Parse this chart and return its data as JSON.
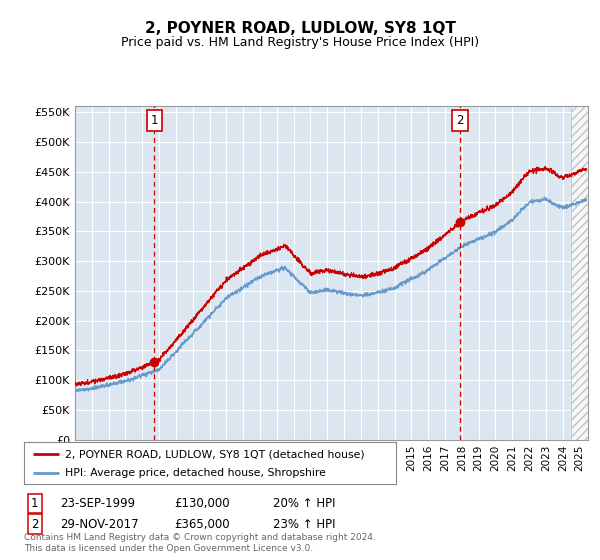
{
  "title": "2, POYNER ROAD, LUDLOW, SY8 1QT",
  "subtitle": "Price paid vs. HM Land Registry's House Price Index (HPI)",
  "ylim": [
    0,
    560000
  ],
  "yticks": [
    0,
    50000,
    100000,
    150000,
    200000,
    250000,
    300000,
    350000,
    400000,
    450000,
    500000,
    550000
  ],
  "ytick_labels": [
    "£0",
    "£50K",
    "£100K",
    "£150K",
    "£200K",
    "£250K",
    "£300K",
    "£350K",
    "£400K",
    "£450K",
    "£500K",
    "£550K"
  ],
  "xlim_start": 1995.0,
  "xlim_end": 2025.5,
  "hatch_start": 2024.5,
  "sale1_year": 1999.72,
  "sale1_price": 130000,
  "sale1_label": "1",
  "sale1_date": "23-SEP-1999",
  "sale1_pct": "20% ↑ HPI",
  "sale2_year": 2017.91,
  "sale2_price": 365000,
  "sale2_label": "2",
  "sale2_date": "29-NOV-2017",
  "sale2_pct": "23% ↑ HPI",
  "property_color": "#cc0000",
  "hpi_color": "#6699cc",
  "plot_bg": "#dce6f1",
  "legend_label_property": "2, POYNER ROAD, LUDLOW, SY8 1QT (detached house)",
  "legend_label_hpi": "HPI: Average price, detached house, Shropshire",
  "footer": "Contains HM Land Registry data © Crown copyright and database right 2024.\nThis data is licensed under the Open Government Licence v3.0.",
  "title_fontsize": 11,
  "subtitle_fontsize": 9.5
}
